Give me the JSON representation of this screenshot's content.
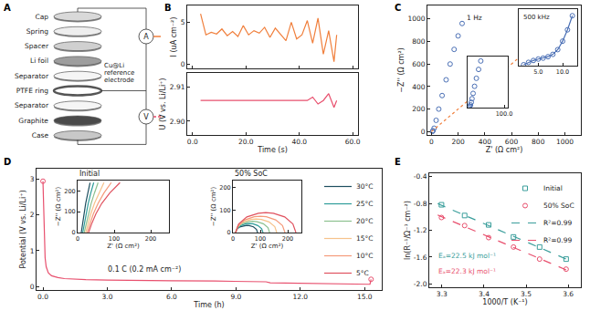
{
  "panel_labels": [
    "A",
    "B",
    "C",
    "D",
    "E"
  ],
  "diagram": {
    "layers": [
      "Cap",
      "Spring",
      "Spacer",
      "Li foil",
      "Separator",
      "PTFE ring",
      "Separator",
      "Graphite",
      "Case"
    ],
    "reference_label": "Cu@Li reference electrode",
    "ammeter": "A",
    "voltmeter": "V"
  },
  "chart_data": [
    {
      "type": "line",
      "xlabel": "Time (s)",
      "xlim": [
        -2,
        62
      ],
      "xticks": [
        {
          "value": 0,
          "label": "0.0"
        },
        {
          "value": 20,
          "label": "20.0"
        },
        {
          "value": 40,
          "label": "40.0"
        },
        {
          "value": 60,
          "label": "60.0"
        }
      ],
      "x": [
        3,
        5,
        7,
        9,
        11,
        13,
        15,
        17,
        19,
        21,
        23,
        25,
        27,
        29,
        31,
        33,
        35,
        37,
        39,
        41,
        43,
        45,
        47,
        49,
        51,
        53,
        54
      ],
      "panels": [
        {
          "ylabel": "I (uA cm⁻²)",
          "ylim": [
            -0.5,
            7
          ],
          "yticks": [
            0,
            5
          ],
          "series": [
            {
              "color": "#f07f3c",
              "line_style": "solid",
              "values": [
                6.0,
                3.5,
                3.8,
                3.6,
                4.2,
                3.4,
                3.9,
                3.3,
                4.6,
                3.5,
                4.0,
                3.7,
                4.4,
                3.2,
                4.3,
                3.6,
                2.8,
                5.0,
                3.0,
                3.5,
                5.2,
                2.5,
                5.5,
                1.2,
                4.0,
                0.3,
                3.5
              ]
            }
          ]
        },
        {
          "ylabel": "U (V vs. Li/Li⁺)",
          "ylim": [
            2.896,
            2.914
          ],
          "yticks": [
            {
              "value": 2.9,
              "label": "2.90"
            },
            2.91
          ],
          "series": [
            {
              "color": "#e8506e",
              "line_style": "solid",
              "values": [
                2.906,
                2.906,
                2.906,
                2.906,
                2.906,
                2.906,
                2.906,
                2.906,
                2.906,
                2.906,
                2.906,
                2.906,
                2.906,
                2.906,
                2.906,
                2.906,
                2.906,
                2.906,
                2.906,
                2.906,
                2.906,
                2.907,
                2.905,
                2.906,
                2.908,
                2.904,
                2.906
              ]
            }
          ]
        }
      ]
    },
    {
      "type": "scatter",
      "xlabel": "Z' (Ω cm²)",
      "ylabel": "−Z'' (Ω cm²)",
      "xlim": [
        -30,
        1120
      ],
      "ylim": [
        -30,
        1120
      ],
      "xticks": [
        0,
        200,
        400,
        600,
        800,
        1000
      ],
      "yticks": [
        0,
        200,
        400,
        600,
        800,
        1000
      ],
      "annotations": [
        "1 Hz"
      ],
      "series": [
        {
          "color": "#4a6fb5",
          "marker": "circle-open",
          "x": [
            8,
            12,
            20,
            35,
            55,
            80,
            110,
            140,
            170,
            200,
            230
          ],
          "values": [
            2,
            8,
            30,
            100,
            200,
            320,
            460,
            600,
            730,
            850,
            960
          ]
        },
        {
          "color": "#f07f3c",
          "line_style": "dot",
          "x": [
            0,
            1050
          ],
          "values": [
            0,
            1050
          ]
        }
      ],
      "insets": [
        {
          "xlim": [
            0,
            110
          ],
          "ylim": [
            0,
            115
          ],
          "xticks": [
            {
              "value": 100,
              "label": "100.0"
            }
          ],
          "tick_labels": "x",
          "series": [
            {
              "color": "#4a6fb5",
              "marker": "circle-open",
              "x": [
                4,
                6,
                8,
                10,
                12,
                15,
                19,
                24,
                30,
                36
              ],
              "values": [
                1,
                3,
                6,
                12,
                20,
                32,
                48,
                66,
                86,
                105
              ]
            }
          ]
        },
        {
          "xlim": [
            1,
            13
          ],
          "ylim": [
            0,
            6
          ],
          "xticks": [
            {
              "value": 5,
              "label": "5.0"
            },
            {
              "value": 10,
              "label": "10.0"
            }
          ],
          "tick_labels": "x",
          "annotations": [
            "500 kHz"
          ],
          "series": [
            {
              "color": "#4a6fb5",
              "marker": "circle-open",
              "line_style": "solid",
              "x": [
                2,
                3,
                4,
                5,
                6,
                7,
                8,
                9,
                10,
                11,
                12
              ],
              "values": [
                0.1,
                0.35,
                0.55,
                0.7,
                0.8,
                0.95,
                1.2,
                1.7,
                2.6,
                3.8,
                5.3
              ]
            }
          ]
        }
      ]
    },
    {
      "type": "line",
      "xlabel": "Time (h)",
      "ylabel": "Potential (V vs. Li/Li⁺)",
      "xlim": [
        -0.3,
        15.8
      ],
      "ylim": [
        -0.1,
        3.3
      ],
      "xticks": [
        {
          "value": 0,
          "label": "0.0"
        },
        {
          "value": 3,
          "label": "3.0"
        },
        {
          "value": 6,
          "label": "6.0"
        },
        {
          "value": 9,
          "label": "9.0"
        },
        {
          "value": 12,
          "label": "12.0"
        },
        {
          "value": 15,
          "label": "15.0"
        }
      ],
      "yticks": [
        0,
        1,
        2,
        3
      ],
      "annotations": [
        "0.1 C (0.2 mA cm⁻²)"
      ],
      "legend": "top right",
      "series": [
        {
          "color": "#e8506e",
          "line_style": "solid",
          "x": [
            0,
            0.03,
            0.06,
            0.1,
            0.15,
            0.25,
            0.4,
            0.7,
            1.0,
            2.0,
            3.0,
            4.0,
            6.0,
            8.0,
            10.0,
            10.4,
            10.6,
            12.0,
            14.0,
            15.0,
            15.25,
            15.3
          ],
          "values": [
            2.95,
            2.4,
            1.4,
            0.8,
            0.55,
            0.38,
            0.3,
            0.25,
            0.22,
            0.19,
            0.18,
            0.17,
            0.16,
            0.15,
            0.14,
            0.13,
            0.1,
            0.09,
            0.08,
            0.07,
            0.06,
            0.2
          ]
        },
        {
          "type": "scatter",
          "color": "#e8506e",
          "marker": "circle-open",
          "x": [
            0,
            15.3
          ],
          "values": [
            2.95,
            0.2
          ]
        }
      ],
      "insets": [
        {
          "title": "Initial",
          "xlabel": "Z' (Ω cm²)",
          "ylabel": "−Z'' (Ω cm²)",
          "xlim": [
            0,
            250
          ],
          "ylim": [
            0,
            250
          ],
          "xticks": [
            0,
            100,
            200
          ],
          "yticks": [
            0,
            100,
            200
          ],
          "series": [
            {
              "name": "30°C",
              "color": "#1d4e5f",
              "line_style": "solid",
              "x": [
                10,
                13,
                17,
                22,
                28,
                34
              ],
              "values": [
                0,
                40,
                90,
                140,
                190,
                240
              ]
            },
            {
              "name": "25°C",
              "color": "#2e9c99",
              "line_style": "solid",
              "x": [
                14,
                18,
                23,
                29,
                36,
                44
              ],
              "values": [
                0,
                40,
                90,
                140,
                190,
                240
              ]
            },
            {
              "name": "20°C",
              "color": "#8cc08f",
              "line_style": "solid",
              "x": [
                18,
                23,
                29,
                37,
                46,
                56
              ],
              "values": [
                0,
                40,
                90,
                140,
                190,
                240
              ]
            },
            {
              "name": "15°C",
              "color": "#f6c28b",
              "line_style": "solid",
              "x": [
                22,
                28,
                36,
                46,
                58,
                72
              ],
              "values": [
                0,
                40,
                90,
                140,
                190,
                240
              ]
            },
            {
              "name": "10°C",
              "color": "#f59a7a",
              "line_style": "solid",
              "x": [
                26,
                33,
                43,
                56,
                72,
                92
              ],
              "values": [
                0,
                40,
                90,
                140,
                190,
                240
              ]
            },
            {
              "name": "5°C",
              "color": "#e0525f",
              "line_style": "solid",
              "x": [
                30,
                38,
                50,
                66,
                88,
                116
              ],
              "values": [
                0,
                40,
                90,
                140,
                190,
                240
              ]
            }
          ]
        },
        {
          "title": "50% SoC",
          "xlabel": "Z' (Ω cm²)",
          "ylabel": "−Z'' (Ω cm²)",
          "xlim": [
            0,
            250
          ],
          "ylim": [
            0,
            230
          ],
          "xticks": [
            0,
            100,
            200
          ],
          "yticks": [
            0,
            100,
            200
          ],
          "series": [
            {
              "name": "30°C",
              "color": "#1d4e5f",
              "line_style": "solid",
              "x": [
                10,
                14,
                25,
                40,
                50,
                60,
                75,
                86,
                90
              ],
              "values": [
                0,
                14,
                25,
                31,
                32,
                31,
                25,
                14,
                0
              ]
            },
            {
              "name": "25°C",
              "color": "#2e9c99",
              "line_style": "solid",
              "x": [
                10,
                15,
                29,
                48,
                60,
                73,
                91,
                105,
                110
              ],
              "values": [
                0,
                17,
                31,
                39,
                40,
                39,
                31,
                17,
                0
              ]
            },
            {
              "name": "20°C",
              "color": "#8cc08f",
              "line_style": "solid",
              "x": [
                10,
                16,
                33,
                57,
                72,
                88,
                111,
                128,
                134
              ],
              "values": [
                0,
                22,
                39,
                48,
                50,
                48,
                39,
                22,
                0
              ]
            },
            {
              "name": "15°C",
              "color": "#f6c28b",
              "line_style": "solid",
              "x": [
                10,
                18,
                38,
                66,
                85,
                104,
                132,
                153,
                160
              ],
              "values": [
                0,
                26,
                47,
                58,
                60,
                58,
                47,
                26,
                0
              ]
            },
            {
              "name": "10°C",
              "color": "#f59a7a",
              "line_style": "solid",
              "x": [
                10,
                19,
                44,
                78,
                100,
                122,
                156,
                181,
                190
              ],
              "values": [
                0,
                31,
                56,
                70,
                72,
                70,
                56,
                31,
                0
              ]
            },
            {
              "name": "5°C",
              "color": "#e0525f",
              "line_style": "solid",
              "x": [
                10,
                21,
                51,
                93,
                120,
                148,
                189,
                219,
                230
              ],
              "values": [
                0,
                38,
                69,
                85,
                88,
                85,
                69,
                38,
                0
              ]
            }
          ]
        }
      ]
    },
    {
      "type": "scatter",
      "xlabel": "1000/T (K⁻¹)",
      "ylabel": "ln(R⁻¹/Ω⁻¹ cm⁻²)",
      "xlim": [
        3.27,
        3.63
      ],
      "ylim": [
        -2.05,
        -0.35
      ],
      "xticks": [
        3.3,
        3.4,
        3.5,
        3.6
      ],
      "yticks": [
        {
          "value": -2.0,
          "label": "-2.0"
        },
        -1.6,
        -1.2,
        -0.8,
        -0.4
      ],
      "legend": "top right",
      "annotations": [
        "Eₐ=22.5 kJ mol⁻¹",
        "Eₐ=22.3 kJ mol⁻¹"
      ],
      "series": [
        {
          "name": "Initial",
          "color": "#3a9e9b",
          "marker": "square-open",
          "x": [
            3.299,
            3.354,
            3.411,
            3.47,
            3.532,
            3.595
          ],
          "values": [
            -0.82,
            -0.98,
            -1.12,
            -1.3,
            -1.45,
            -1.63
          ]
        },
        {
          "name": "50% SoC",
          "color": "#e8506e",
          "marker": "circle-open",
          "x": [
            3.299,
            3.354,
            3.411,
            3.47,
            3.532,
            3.595
          ],
          "values": [
            -1.01,
            -1.13,
            -1.31,
            -1.45,
            -1.63,
            -1.78
          ]
        },
        {
          "name": "R²=0.99",
          "color": "#3a9e9b",
          "line_style": "dash",
          "x": [
            3.29,
            3.61
          ],
          "values": [
            -0.803,
            -1.67
          ]
        },
        {
          "name": "R²=0.99",
          "color": "#e8506e",
          "line_style": "dash",
          "x": [
            3.29,
            3.61
          ],
          "values": [
            -0.973,
            -1.831
          ]
        }
      ]
    }
  ]
}
